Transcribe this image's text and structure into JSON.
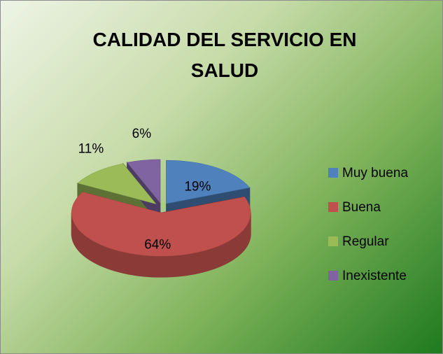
{
  "chart_data": {
    "type": "pie3d",
    "title": "CALIDAD DEL SERVICIO EN SALUD",
    "categories": [
      "Muy buena",
      "Buena",
      "Regular",
      "Inexistente"
    ],
    "values": [
      19,
      64,
      11,
      6
    ],
    "value_labels": [
      "19%",
      "64%",
      "11%",
      "6%"
    ],
    "colors": [
      "#4f81bd",
      "#c0504d",
      "#9bbb59",
      "#8064a2"
    ],
    "legend": "right"
  }
}
